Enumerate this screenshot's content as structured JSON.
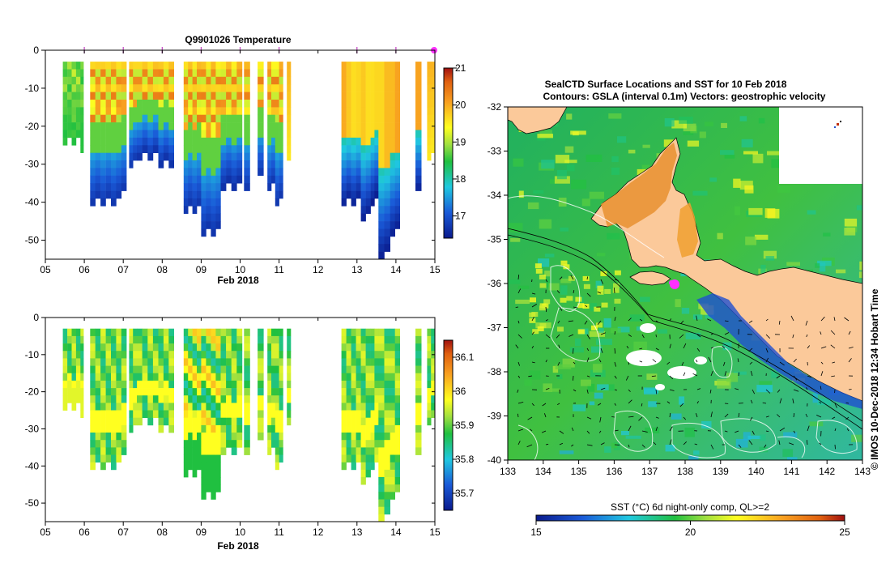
{
  "chart_data": [
    {
      "type": "heatmap",
      "title": "Q9901026  Temperature",
      "xlabel": "Feb 2018",
      "x_ticks": [
        "05",
        "06",
        "07",
        "08",
        "09",
        "10",
        "11",
        "12",
        "13",
        "14",
        "15"
      ],
      "y_ticks": [
        "0",
        "-10",
        "-20",
        "-30",
        "-40",
        "-50"
      ],
      "xlim": [
        5,
        15
      ],
      "ylim": [
        -55,
        0
      ],
      "colorbar": {
        "ticks": [
          "21",
          "20",
          "19",
          "18",
          "17"
        ],
        "range": [
          16.4,
          21.0
        ]
      },
      "profile_markers": [
        6.0,
        7.0,
        8.0,
        9.0,
        10.0,
        11.0,
        13.0,
        14.0,
        15.0
      ]
    },
    {
      "type": "heatmap",
      "title": "",
      "xlabel": "Feb 2018",
      "x_ticks": [
        "05",
        "06",
        "07",
        "08",
        "09",
        "10",
        "11",
        "12",
        "13",
        "14",
        "15"
      ],
      "y_ticks": [
        "0",
        "-10",
        "-20",
        "-30",
        "-40",
        "-50"
      ],
      "xlim": [
        5,
        15
      ],
      "ylim": [
        -55,
        0
      ],
      "colorbar": {
        "ticks": [
          "36.1",
          "36",
          "35.9",
          "35.8",
          "35.7"
        ],
        "range": [
          35.65,
          36.15
        ]
      }
    },
    {
      "type": "heatmap",
      "title_line1": "SealCTD Surface Locations and SST for 10 Feb 2018",
      "title_line2": "Contours: GSLA (interval 0.1m) Vectors: geostrophic velocity",
      "x_ticks": [
        "133",
        "134",
        "135",
        "136",
        "137",
        "138",
        "139",
        "140",
        "141",
        "142",
        "143"
      ],
      "y_ticks": [
        "-32",
        "-33",
        "-34",
        "-35",
        "-36",
        "-37",
        "-38",
        "-39",
        "-40"
      ],
      "xlim": [
        133,
        143
      ],
      "ylim": [
        -40,
        -32
      ],
      "colorbar": {
        "label": "SST (°C) 6d night-only comp, QL>=2",
        "ticks": [
          "15",
          "20",
          "25"
        ],
        "range": [
          15,
          25
        ]
      },
      "side_label": "© IMOS 10-Dec-2018 12:34 Hobart Time"
    }
  ]
}
